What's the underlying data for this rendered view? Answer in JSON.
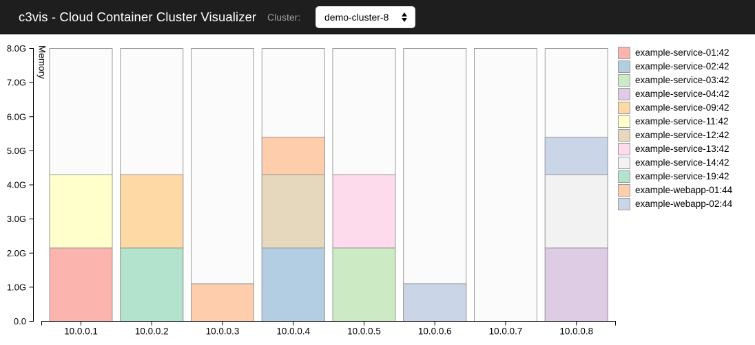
{
  "header": {
    "title": "c3vis - Cloud Container Cluster Visualizer",
    "cluster_label": "Cluster:",
    "cluster_selected": "demo-cluster-8"
  },
  "chart_data": {
    "type": "bar",
    "stacked": true,
    "title": "",
    "xlabel": "",
    "ylabel": "Memory",
    "y_unit": "GB",
    "ylim": [
      0,
      8
    ],
    "y_ticks": [
      "0.0",
      "1.0G",
      "2.0G",
      "3.0G",
      "4.0G",
      "5.0G",
      "6.0G",
      "7.0G",
      "8.0G"
    ],
    "grid": false,
    "legend_position": "right",
    "instance_capacity_gb": 8.0,
    "axis_color": "#000000",
    "bar_border_color": "#999999",
    "remaining_fill": "#fbfbfb",
    "categories": [
      "10.0.0.1",
      "10.0.0.2",
      "10.0.0.3",
      "10.0.0.4",
      "10.0.0.5",
      "10.0.0.6",
      "10.0.0.7",
      "10.0.0.8"
    ],
    "bars": [
      {
        "category": "10.0.0.1",
        "total_gb": 4.3,
        "segments": [
          {
            "service": "example-service-01:42",
            "gb": 2.15
          },
          {
            "service": "example-service-11:42",
            "gb": 2.15
          }
        ]
      },
      {
        "category": "10.0.0.2",
        "total_gb": 4.3,
        "segments": [
          {
            "service": "example-service-19:42",
            "gb": 2.15
          },
          {
            "service": "example-service-09:42",
            "gb": 2.15
          }
        ]
      },
      {
        "category": "10.0.0.3",
        "total_gb": 1.1,
        "segments": [
          {
            "service": "example-webapp-01:44",
            "gb": 1.1
          }
        ]
      },
      {
        "category": "10.0.0.4",
        "total_gb": 5.4,
        "segments": [
          {
            "service": "example-service-02:42",
            "gb": 2.15
          },
          {
            "service": "example-service-12:42",
            "gb": 2.15
          },
          {
            "service": "example-webapp-01:44",
            "gb": 1.1
          }
        ]
      },
      {
        "category": "10.0.0.5",
        "total_gb": 4.3,
        "segments": [
          {
            "service": "example-service-03:42",
            "gb": 2.15
          },
          {
            "service": "example-service-13:42",
            "gb": 2.15
          }
        ]
      },
      {
        "category": "10.0.0.6",
        "total_gb": 1.1,
        "segments": [
          {
            "service": "example-webapp-02:44",
            "gb": 1.1
          }
        ]
      },
      {
        "category": "10.0.0.7",
        "total_gb": 0,
        "segments": []
      },
      {
        "category": "10.0.0.8",
        "total_gb": 5.4,
        "segments": [
          {
            "service": "example-service-04:42",
            "gb": 2.15
          },
          {
            "service": "example-service-14:42",
            "gb": 2.15
          },
          {
            "service": "example-webapp-02:44",
            "gb": 1.1
          }
        ]
      }
    ],
    "legend": [
      {
        "label": "example-service-01:42",
        "color": "#fbb4ae"
      },
      {
        "label": "example-service-02:42",
        "color": "#b3cde3"
      },
      {
        "label": "example-service-03:42",
        "color": "#ccebc5"
      },
      {
        "label": "example-service-04:42",
        "color": "#decbe4"
      },
      {
        "label": "example-service-09:42",
        "color": "#fed9a6"
      },
      {
        "label": "example-service-11:42",
        "color": "#ffffcc"
      },
      {
        "label": "example-service-12:42",
        "color": "#e5d8bd"
      },
      {
        "label": "example-service-13:42",
        "color": "#fddaec"
      },
      {
        "label": "example-service-14:42",
        "color": "#f2f2f2"
      },
      {
        "label": "example-service-19:42",
        "color": "#b3e2cd"
      },
      {
        "label": "example-webapp-01:44",
        "color": "#fdcdac"
      },
      {
        "label": "example-webapp-02:44",
        "color": "#cbd5e8"
      }
    ]
  }
}
